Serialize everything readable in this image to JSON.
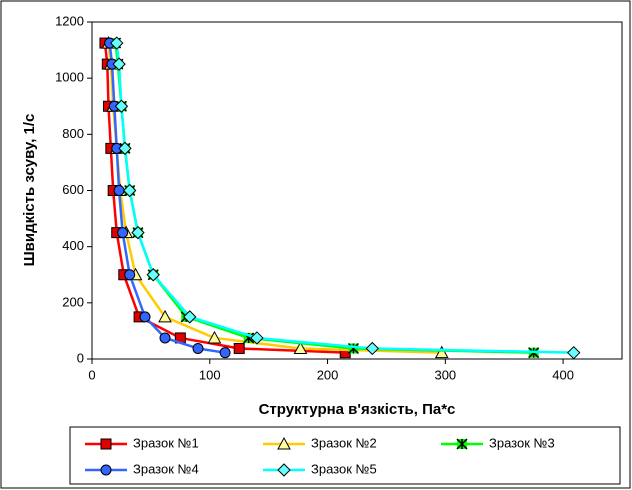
{
  "chart_data": {
    "type": "line",
    "x_label": "Структурна в'язкість, Па*с",
    "y_label": "Швидкість зсуву, 1/с",
    "xlim": [
      0,
      450
    ],
    "xticks": [
      0,
      100,
      200,
      300,
      400
    ],
    "ylim": [
      0,
      1200
    ],
    "yticks": [
      0,
      200,
      400,
      600,
      800,
      1000,
      1200
    ],
    "series": [
      {
        "name": "Зразок №1",
        "color": "#ff0000",
        "marker": "square",
        "marker_fill": "#e00000",
        "x": [
          11,
          13,
          14,
          16,
          18,
          21,
          27,
          40,
          75,
          125,
          215
        ],
        "values": [
          1125,
          1050,
          900,
          750,
          600,
          450,
          300,
          150,
          75,
          37.5,
          22.5
        ]
      },
      {
        "name": "Зразок №2",
        "color": "#ffcc00",
        "marker": "triangle",
        "marker_fill": "#ffff99",
        "x": [
          14,
          16,
          18,
          21,
          24,
          29,
          37,
          62,
          104,
          177,
          297
        ],
        "values": [
          1125,
          1050,
          900,
          750,
          600,
          450,
          300,
          150,
          75,
          37.5,
          22.5
        ]
      },
      {
        "name": "Зразок №3",
        "color": "#00ff00",
        "marker": "star",
        "marker_fill": "#00ff00",
        "x": [
          20,
          22,
          25,
          28,
          32,
          39,
          52,
          80,
          133,
          222,
          375
        ],
        "values": [
          1125,
          1050,
          900,
          750,
          600,
          450,
          300,
          150,
          75,
          37.5,
          22.5
        ]
      },
      {
        "name": "Зразок №4",
        "color": "#3366ff",
        "marker": "circle",
        "marker_fill": "#3366ff",
        "x": [
          15,
          17,
          19,
          21,
          23,
          26,
          32,
          45,
          62,
          90,
          113
        ],
        "values": [
          1125,
          1050,
          900,
          750,
          600,
          450,
          300,
          150,
          75,
          37.5,
          22.5
        ]
      },
      {
        "name": "Зразок №5",
        "color": "#00ffff",
        "marker": "diamond",
        "marker_fill": "#66ffff",
        "x": [
          21,
          23,
          25,
          28,
          32,
          39,
          52,
          83,
          140,
          238,
          409
        ],
        "values": [
          1125,
          1050,
          900,
          750,
          600,
          450,
          300,
          150,
          75,
          37.5,
          22.5
        ]
      }
    ]
  }
}
